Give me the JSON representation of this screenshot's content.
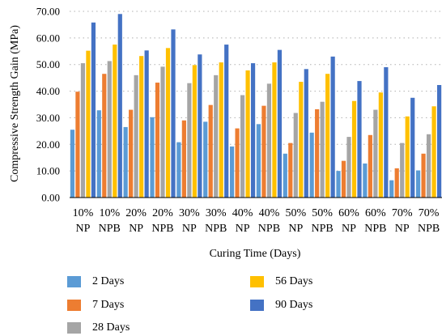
{
  "chart_data": {
    "type": "bar",
    "title": "",
    "xlabel": "Curing Time (Days)",
    "ylabel": "Compressive Strength Gain (MPa)",
    "ylim": [
      0,
      70
    ],
    "yticks": [
      "0.00",
      "10.00",
      "20.00",
      "30.00",
      "40.00",
      "50.00",
      "60.00",
      "70.00"
    ],
    "grid": "horizontal dotted",
    "legend_position": "bottom",
    "categories": [
      [
        "10%",
        "NP"
      ],
      [
        "10%",
        "NPB"
      ],
      [
        "20%",
        "NP"
      ],
      [
        "20%",
        "NPB"
      ],
      [
        "30%",
        "NP"
      ],
      [
        "30%",
        "NPB"
      ],
      [
        "40%",
        "NP"
      ],
      [
        "40%",
        "NPB"
      ],
      [
        "50%",
        "NP"
      ],
      [
        "50%",
        "NPB"
      ],
      [
        "60%",
        "NP"
      ],
      [
        "60%",
        "NPB"
      ],
      [
        "70%",
        "NP"
      ],
      [
        "70%",
        "NPB"
      ]
    ],
    "series": [
      {
        "name": "2 Days",
        "color": "#5b9bd5",
        "values": [
          25.5,
          32.8,
          26.5,
          30.2,
          20.8,
          28.5,
          19.2,
          27.6,
          16.5,
          24.4,
          10.0,
          12.8,
          6.5,
          10.2
        ]
      },
      {
        "name": "7 Days",
        "color": "#ed7d31",
        "values": [
          39.8,
          46.5,
          33.0,
          43.2,
          29.0,
          34.8,
          26.0,
          34.5,
          20.5,
          33.2,
          13.8,
          23.5,
          11.0,
          16.5
        ]
      },
      {
        "name": "28 Days",
        "color": "#a5a5a5",
        "values": [
          50.5,
          51.3,
          46.0,
          49.2,
          43.0,
          46.0,
          38.5,
          42.8,
          31.8,
          36.0,
          22.8,
          33.0,
          20.5,
          23.8
        ]
      },
      {
        "name": "56 Days",
        "color": "#ffc000",
        "values": [
          55.2,
          57.5,
          53.2,
          56.2,
          49.8,
          50.8,
          47.8,
          50.8,
          43.5,
          46.5,
          36.3,
          39.5,
          30.5,
          34.3
        ]
      },
      {
        "name": "90 Days",
        "color": "#4472c4",
        "values": [
          65.8,
          69.0,
          55.3,
          63.2,
          53.8,
          57.5,
          50.5,
          55.5,
          48.3,
          53.0,
          43.8,
          49.0,
          37.5,
          42.3
        ]
      }
    ]
  }
}
